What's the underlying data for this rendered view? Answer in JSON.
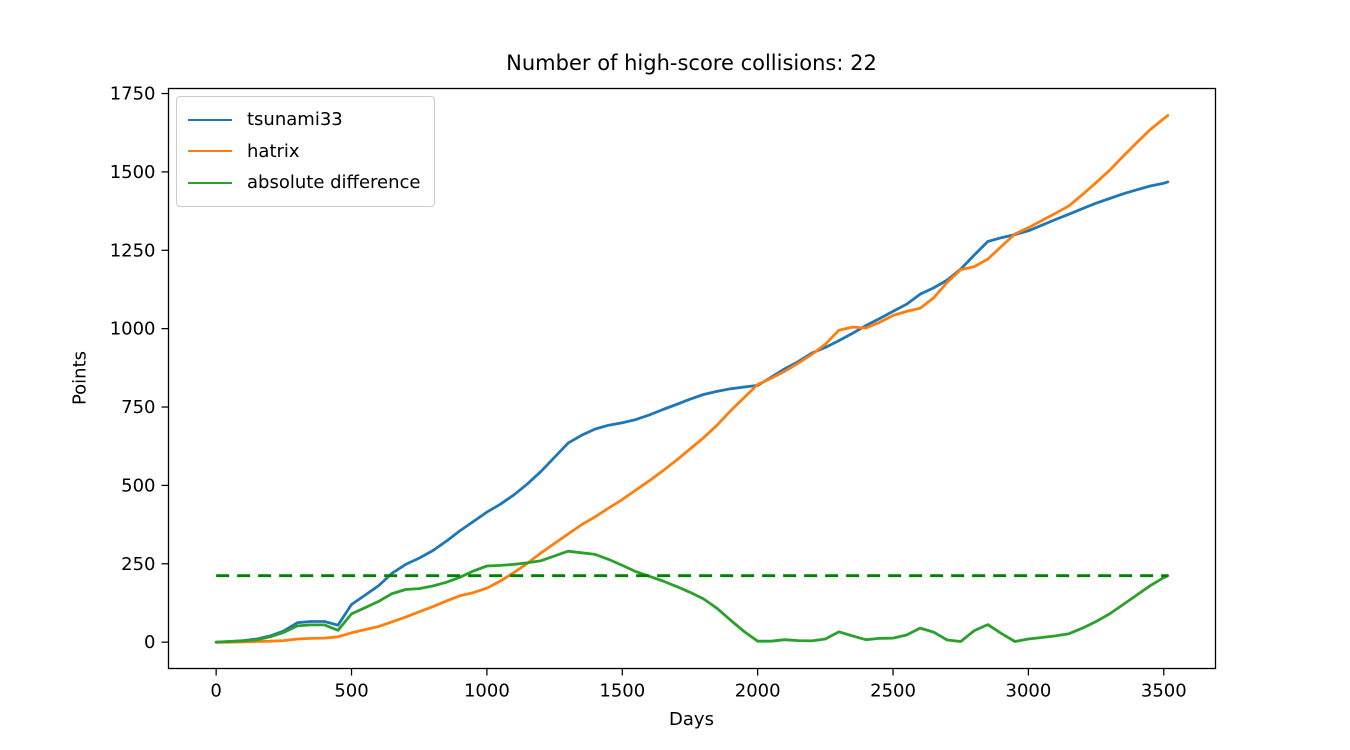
{
  "chart_data": {
    "type": "line",
    "title": "Number of high-score collisions: 22",
    "xlabel": "Days",
    "ylabel": "Points",
    "xlim": [
      -176,
      3691
    ],
    "ylim": [
      -84,
      1766
    ],
    "x_ticks": [
      0,
      500,
      1000,
      1500,
      2000,
      2500,
      3000,
      3500
    ],
    "y_ticks": [
      0,
      250,
      500,
      750,
      1000,
      1250,
      1500,
      1750
    ],
    "grid": false,
    "legend_position": "upper left",
    "x": [
      0,
      50,
      100,
      150,
      200,
      250,
      300,
      350,
      400,
      450,
      500,
      550,
      600,
      650,
      700,
      750,
      800,
      850,
      900,
      950,
      1000,
      1050,
      1100,
      1150,
      1200,
      1250,
      1300,
      1350,
      1400,
      1450,
      1500,
      1550,
      1600,
      1650,
      1700,
      1750,
      1800,
      1850,
      1900,
      1950,
      2000,
      2050,
      2100,
      2150,
      2200,
      2250,
      2300,
      2350,
      2400,
      2450,
      2500,
      2550,
      2600,
      2650,
      2700,
      2750,
      2800,
      2850,
      2900,
      2950,
      3000,
      3050,
      3100,
      3150,
      3200,
      3250,
      3300,
      3350,
      3400,
      3450,
      3500,
      3515
    ],
    "series": [
      {
        "name": "tsunami33",
        "color": "#1f77b4",
        "linestyle": "solid",
        "show_in_legend": true,
        "values": [
          0,
          2,
          5,
          10,
          20,
          36,
          62,
          66,
          66,
          54,
          120,
          150,
          180,
          220,
          248,
          268,
          292,
          322,
          355,
          385,
          415,
          440,
          470,
          505,
          545,
          590,
          635,
          660,
          680,
          692,
          700,
          710,
          725,
          742,
          758,
          775,
          790,
          800,
          808,
          814,
          819,
          845,
          872,
          895,
          922,
          940,
          962,
          985,
          1010,
          1032,
          1055,
          1078,
          1110,
          1130,
          1155,
          1190,
          1235,
          1278,
          1290,
          1300,
          1312,
          1330,
          1348,
          1365,
          1383,
          1400,
          1415,
          1430,
          1443,
          1455,
          1464,
          1468
        ]
      },
      {
        "name": "hatrix",
        "color": "#ff7f0e",
        "linestyle": "solid",
        "show_in_legend": true,
        "values": [
          0,
          0,
          1,
          2,
          3,
          5,
          10,
          12,
          13,
          17,
          30,
          40,
          50,
          65,
          80,
          97,
          113,
          131,
          148,
          158,
          172,
          195,
          222,
          252,
          285,
          315,
          345,
          375,
          400,
          428,
          455,
          485,
          515,
          547,
          580,
          616,
          652,
          692,
          738,
          780,
          822,
          842,
          864,
          890,
          918,
          950,
          995,
          1005,
          1002,
          1020,
          1042,
          1055,
          1065,
          1098,
          1148,
          1188,
          1198,
          1222,
          1262,
          1302,
          1322,
          1345,
          1368,
          1392,
          1428,
          1466,
          1505,
          1550,
          1593,
          1635,
          1670,
          1680
        ]
      },
      {
        "name": "absolute difference",
        "color": "#2ca02c",
        "linestyle": "solid",
        "show_in_legend": true,
        "values": [
          0,
          2,
          4,
          8,
          17,
          31,
          52,
          55,
          55,
          38,
          90,
          110,
          130,
          155,
          168,
          171,
          179,
          191,
          207,
          227,
          243,
          245,
          248,
          253,
          260,
          275,
          290,
          285,
          280,
          264,
          245,
          225,
          210,
          195,
          178,
          159,
          138,
          108,
          70,
          34,
          3,
          3,
          8,
          5,
          4,
          10,
          33,
          20,
          8,
          12,
          13,
          23,
          45,
          32,
          7,
          2,
          37,
          56,
          28,
          2,
          10,
          15,
          20,
          27,
          45,
          66,
          90,
          120,
          150,
          180,
          206,
          212
        ]
      },
      {
        "name": "threshold",
        "type": "hline",
        "color": "#008000",
        "linestyle": "dashed",
        "show_in_legend": false,
        "y": 212,
        "x_range": [
          0,
          3515
        ]
      }
    ]
  }
}
